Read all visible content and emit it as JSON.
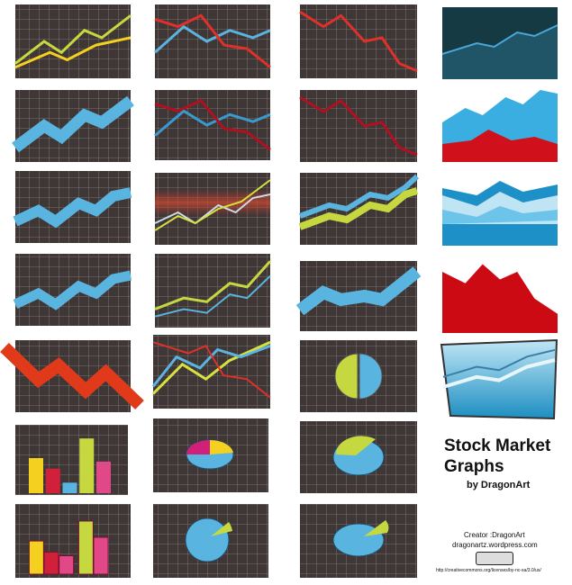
{
  "header": {
    "title": "Stock Market Graphs",
    "byline": "by DragonArt"
  },
  "credits": {
    "creator": "Creator :DragonArt",
    "site": "dragonartz.wordpress.com",
    "license": "http://creativecommons.org/licenses/by-nc-sa/3.0/us/"
  }
}
